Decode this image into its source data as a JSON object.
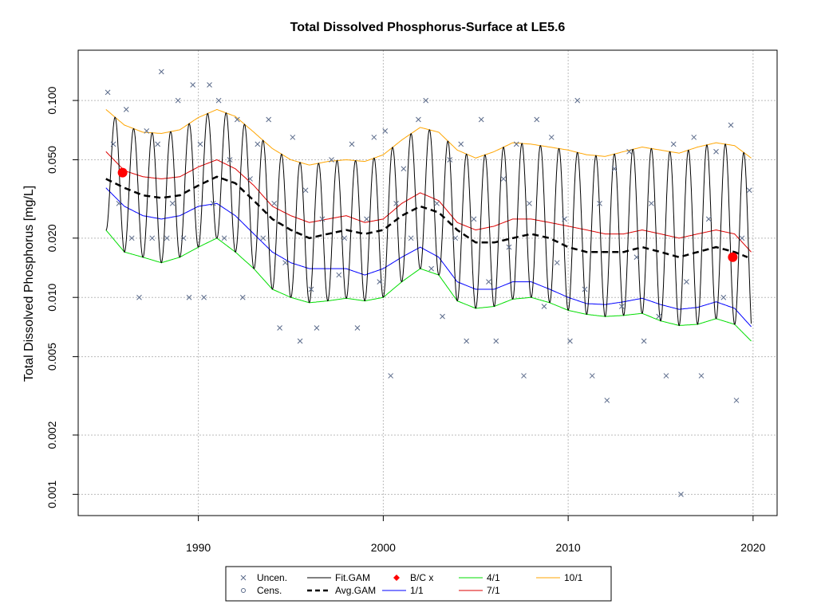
{
  "chart_data": {
    "type": "line",
    "title": "Total Dissolved Phosphorus-Surface at LE5.6",
    "xlabel": "",
    "ylabel": "Total Dissolved Phosphorus [mg/L]",
    "y_scale": "log",
    "xlim": [
      1983.5,
      2021.3
    ],
    "ylim": [
      0.00078,
      0.18
    ],
    "x_ticks": [
      1990,
      2000,
      2010,
      2020
    ],
    "y_ticks": [
      0.001,
      0.002,
      0.005,
      0.01,
      0.02,
      0.05,
      0.1
    ],
    "y_tick_labels": [
      "0.001",
      "0.002",
      "0.005",
      "0.010",
      "0.020",
      "0.050",
      "0.100"
    ],
    "grid": true,
    "legend_position": "bottom",
    "legend": [
      {
        "label": "Uncen.",
        "kind": "x-marker",
        "color": "#5a6a8a"
      },
      {
        "label": "Cens.",
        "kind": "circle-marker",
        "color": "#5a6a8a"
      },
      {
        "label": "Fit.GAM",
        "kind": "line",
        "color": "#000000"
      },
      {
        "label": "Avg.GAM",
        "kind": "dashed-line",
        "color": "#000000"
      },
      {
        "label": "B/C x",
        "kind": "diamond-marker",
        "color": "#ff0000"
      },
      {
        "label": "1/1",
        "kind": "line",
        "color": "#0000ff"
      },
      {
        "label": "4/1",
        "kind": "line",
        "color": "#00dd00"
      },
      {
        "label": "7/1",
        "kind": "line",
        "color": "#dd0000"
      },
      {
        "label": "10/1",
        "kind": "line",
        "color": "#ffa500"
      }
    ],
    "series": [
      {
        "name": "Avg.GAM",
        "color": "#000000",
        "style": "dashed",
        "x": [
          1985,
          1986,
          1987,
          1988,
          1989,
          1990,
          1991,
          1992,
          1993,
          1994,
          1995,
          1996,
          1997,
          1998,
          1999,
          2000,
          2001,
          2002,
          2003,
          2004,
          2005,
          2006,
          2007,
          2008,
          2009,
          2010,
          2011,
          2012,
          2013,
          2014,
          2015,
          2016,
          2017,
          2018,
          2019,
          2019.7
        ],
        "y": [
          0.04,
          0.036,
          0.033,
          0.032,
          0.033,
          0.037,
          0.041,
          0.038,
          0.031,
          0.025,
          0.022,
          0.02,
          0.021,
          0.022,
          0.021,
          0.022,
          0.026,
          0.029,
          0.027,
          0.022,
          0.019,
          0.019,
          0.02,
          0.021,
          0.02,
          0.018,
          0.017,
          0.017,
          0.017,
          0.018,
          0.017,
          0.016,
          0.017,
          0.018,
          0.017,
          0.016
        ]
      },
      {
        "name": "1/1",
        "color": "#0000ff",
        "style": "solid",
        "x": [
          1985,
          1986,
          1987,
          1988,
          1989,
          1990,
          1991,
          1992,
          1993,
          1994,
          1995,
          1996,
          1997,
          1998,
          1999,
          2000,
          2001,
          2002,
          2003,
          2004,
          2005,
          2006,
          2007,
          2008,
          2009,
          2010,
          2011,
          2012,
          2013,
          2014,
          2015,
          2016,
          2017,
          2018,
          2019,
          2019.9
        ],
        "y": [
          0.036,
          0.029,
          0.026,
          0.025,
          0.026,
          0.029,
          0.03,
          0.026,
          0.021,
          0.017,
          0.015,
          0.014,
          0.014,
          0.014,
          0.013,
          0.014,
          0.016,
          0.018,
          0.016,
          0.012,
          0.011,
          0.011,
          0.012,
          0.012,
          0.011,
          0.01,
          0.0093,
          0.0092,
          0.0095,
          0.0099,
          0.0092,
          0.0087,
          0.0089,
          0.0095,
          0.0088,
          0.0071
        ]
      },
      {
        "name": "4/1",
        "color": "#00dd00",
        "style": "solid",
        "x": [
          1985,
          1986,
          1987,
          1988,
          1989,
          1990,
          1991,
          1992,
          1993,
          1994,
          1995,
          1996,
          1997,
          1998,
          1999,
          2000,
          2001,
          2002,
          2003,
          2004,
          2005,
          2006,
          2007,
          2008,
          2009,
          2010,
          2011,
          2012,
          2013,
          2014,
          2015,
          2016,
          2017,
          2018,
          2019,
          2019.9
        ],
        "y": [
          0.022,
          0.017,
          0.016,
          0.015,
          0.016,
          0.018,
          0.02,
          0.017,
          0.014,
          0.011,
          0.01,
          0.0094,
          0.0096,
          0.0099,
          0.0096,
          0.01,
          0.012,
          0.014,
          0.013,
          0.0096,
          0.0088,
          0.009,
          0.0098,
          0.01,
          0.0094,
          0.0086,
          0.0082,
          0.008,
          0.0081,
          0.0083,
          0.0076,
          0.0072,
          0.0073,
          0.0078,
          0.0073,
          0.006
        ]
      },
      {
        "name": "7/1",
        "color": "#dd0000",
        "style": "solid",
        "x": [
          1985,
          1986,
          1987,
          1988,
          1989,
          1990,
          1991,
          1992,
          1993,
          1994,
          1995,
          1996,
          1997,
          1998,
          1999,
          2000,
          2001,
          2002,
          2003,
          2004,
          2005,
          2006,
          2007,
          2008,
          2009,
          2010,
          2011,
          2012,
          2013,
          2014,
          2015,
          2016,
          2017,
          2018,
          2019,
          2019.9
        ],
        "y": [
          0.055,
          0.044,
          0.041,
          0.04,
          0.041,
          0.046,
          0.05,
          0.045,
          0.037,
          0.029,
          0.026,
          0.024,
          0.025,
          0.026,
          0.024,
          0.025,
          0.03,
          0.034,
          0.031,
          0.024,
          0.022,
          0.023,
          0.025,
          0.025,
          0.024,
          0.023,
          0.022,
          0.021,
          0.021,
          0.022,
          0.021,
          0.02,
          0.021,
          0.022,
          0.021,
          0.017
        ]
      },
      {
        "name": "10/1",
        "color": "#ffa500",
        "style": "solid",
        "x": [
          1985,
          1986,
          1987,
          1988,
          1989,
          1990,
          1991,
          1992,
          1993,
          1994,
          1995,
          1996,
          1997,
          1998,
          1999,
          2000,
          2001,
          2002,
          2003,
          2004,
          2005,
          2006,
          2007,
          2008,
          2009,
          2010,
          2011,
          2012,
          2013,
          2014,
          2015,
          2016,
          2017,
          2018,
          2019,
          2019.9
        ],
        "y": [
          0.09,
          0.075,
          0.069,
          0.068,
          0.071,
          0.082,
          0.09,
          0.083,
          0.069,
          0.057,
          0.05,
          0.047,
          0.049,
          0.05,
          0.049,
          0.053,
          0.063,
          0.073,
          0.069,
          0.056,
          0.051,
          0.055,
          0.061,
          0.06,
          0.058,
          0.056,
          0.053,
          0.052,
          0.055,
          0.058,
          0.056,
          0.054,
          0.058,
          0.061,
          0.059,
          0.051
        ]
      }
    ],
    "fit_gam": {
      "name": "Fit.GAM",
      "color": "#000000",
      "x_start": 1985,
      "x_end": 2019.9,
      "description_series": "seasonal cycle oscillating between the 4/1 trough and 10/1 peak envelopes each year"
    },
    "bc_points": {
      "name": "B/C x",
      "color": "#ff0000",
      "x": [
        1985.9,
        2018.9
      ],
      "y": [
        0.043,
        0.016
      ]
    },
    "scatter": {
      "name": "Uncen.",
      "color": "#5a6a8a",
      "x": [
        1985.1,
        1985.4,
        1985.7,
        1986.1,
        1986.4,
        1986.8,
        1987.2,
        1987.5,
        1987.8,
        1988.0,
        1988.3,
        1988.6,
        1988.9,
        1989.2,
        1989.5,
        1989.7,
        1990.1,
        1990.3,
        1990.6,
        1990.8,
        1991.1,
        1991.4,
        1991.7,
        1992.1,
        1992.4,
        1992.8,
        1993.2,
        1993.5,
        1993.8,
        1994.1,
        1994.4,
        1994.7,
        1995.1,
        1995.5,
        1995.8,
        1996.1,
        1996.4,
        1996.7,
        1997.2,
        1997.6,
        1997.9,
        1998.3,
        1998.6,
        1999.1,
        1999.5,
        1999.8,
        2000.1,
        2000.4,
        2000.7,
        2001.1,
        2001.5,
        2001.9,
        2002.3,
        2002.6,
        2002.9,
        2003.2,
        2003.6,
        2003.9,
        2004.2,
        2004.5,
        2004.9,
        2005.3,
        2005.7,
        2006.1,
        2006.5,
        2006.8,
        2007.2,
        2007.6,
        2007.9,
        2008.3,
        2008.7,
        2009.1,
        2009.4,
        2009.8,
        2010.1,
        2010.5,
        2010.9,
        2011.3,
        2011.7,
        2012.1,
        2012.5,
        2012.9,
        2013.3,
        2013.7,
        2014.1,
        2014.5,
        2014.9,
        2015.3,
        2015.7,
        2016.1,
        2016.4,
        2016.8,
        2017.2,
        2017.6,
        2018.0,
        2018.4,
        2018.8,
        2019.1,
        2019.4,
        2019.8
      ],
      "y": [
        0.11,
        0.06,
        0.03,
        0.09,
        0.02,
        0.01,
        0.07,
        0.02,
        0.06,
        0.14,
        0.02,
        0.03,
        0.1,
        0.02,
        0.01,
        0.12,
        0.06,
        0.01,
        0.12,
        0.03,
        0.1,
        0.02,
        0.05,
        0.08,
        0.01,
        0.04,
        0.06,
        0.02,
        0.08,
        0.03,
        0.007,
        0.015,
        0.065,
        0.006,
        0.035,
        0.011,
        0.007,
        0.025,
        0.05,
        0.013,
        0.02,
        0.06,
        0.007,
        0.025,
        0.065,
        0.012,
        0.07,
        0.004,
        0.03,
        0.045,
        0.02,
        0.08,
        0.1,
        0.014,
        0.03,
        0.008,
        0.05,
        0.02,
        0.06,
        0.006,
        0.025,
        0.08,
        0.012,
        0.006,
        0.04,
        0.018,
        0.06,
        0.004,
        0.03,
        0.08,
        0.009,
        0.065,
        0.015,
        0.025,
        0.006,
        0.1,
        0.011,
        0.004,
        0.03,
        0.003,
        0.045,
        0.009,
        0.055,
        0.016,
        0.006,
        0.03,
        0.008,
        0.004,
        0.06,
        0.001,
        0.012,
        0.065,
        0.004,
        0.025,
        0.055,
        0.01,
        0.075,
        0.003,
        0.02,
        0.035
      ]
    }
  }
}
